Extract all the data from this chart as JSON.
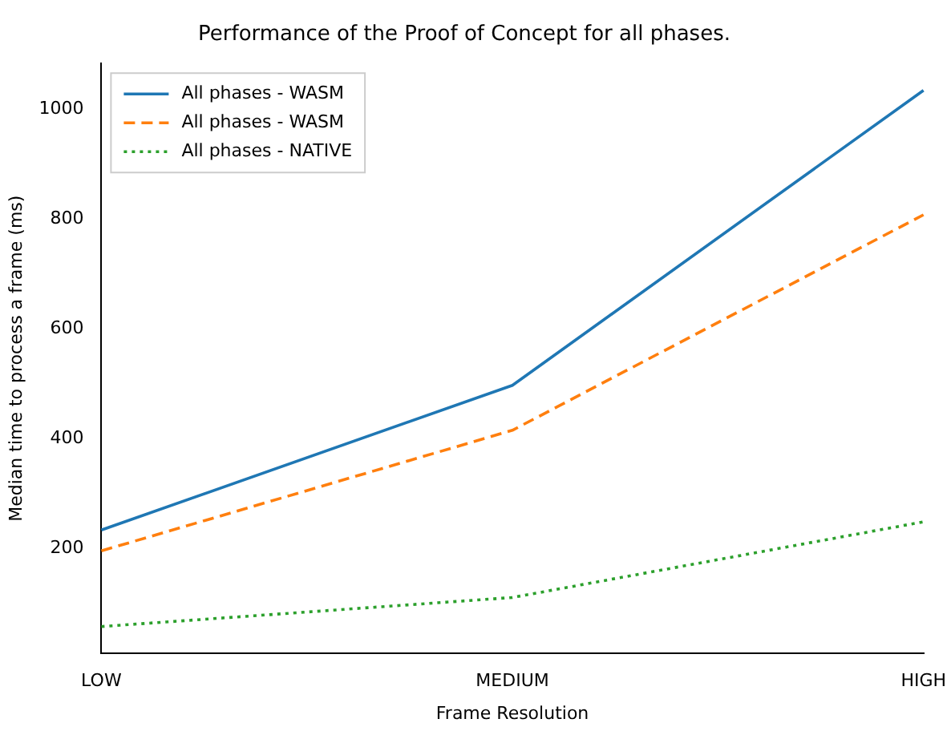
{
  "chart_data": {
    "type": "line",
    "title": "Performance of the Proof of Concept for all phases.",
    "xlabel": "Frame Resolution",
    "ylabel": "Median time to process a frame (ms)",
    "categories": [
      "LOW",
      "MEDIUM",
      "HIGH"
    ],
    "series": [
      {
        "name": "All phases - WASM",
        "color": "#1f77b4",
        "line_style": "solid",
        "values": [
          233,
          497,
          1035
        ]
      },
      {
        "name": "All phases - WASM",
        "color": "#ff7f0e",
        "line_style": "dashed",
        "values": [
          195,
          415,
          808
        ]
      },
      {
        "name": "All phases - NATIVE",
        "color": "#2ca02c",
        "line_style": "dotted",
        "values": [
          57,
          110,
          248
        ]
      }
    ],
    "ylim": [
      8,
      1084
    ],
    "yticks": [
      200,
      400,
      600,
      800,
      1000
    ],
    "grid": false,
    "legend": "top left",
    "marker": "none"
  }
}
